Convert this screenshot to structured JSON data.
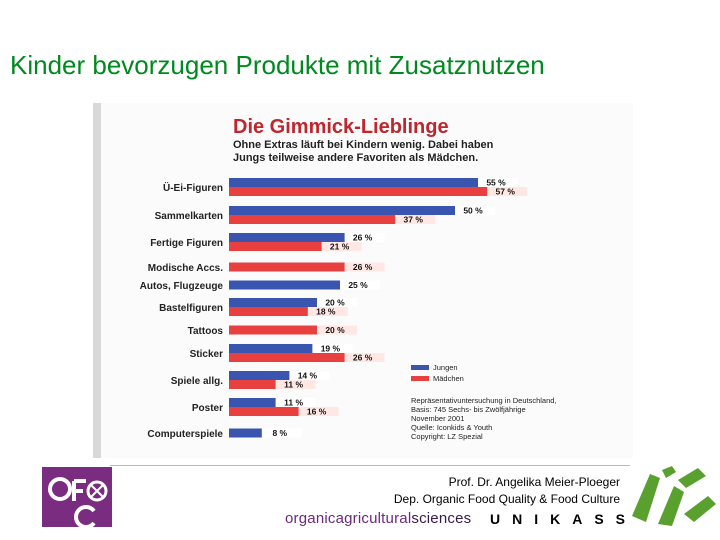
{
  "slide": {
    "title": "Kinder bevorzugen Produkte mit Zusatznutzen"
  },
  "footer": {
    "author": "Prof. Dr. Angelika Meier-Ploeger",
    "department": "Dep. Organic Food Quality & Food Culture",
    "brand_a": "organicagricultural",
    "brand_b": "sciences",
    "uni": "UNIKASSEL"
  },
  "colors": {
    "title": "#00891f",
    "heading": "#c0262e",
    "jungen": "#3a55b0",
    "maedchen": "#e8403e",
    "brand": "#6a2a7a",
    "logo_left_bg": "#7a2c80",
    "logo_right": "#5aa02e"
  },
  "chart_data": {
    "type": "bar",
    "orientation": "horizontal",
    "title": "Die Gimmick-Lieblinge",
    "subtitle": [
      "Ohne Extras läuft bei Kindern wenig. Dabei haben",
      "Jungs teilweise andere Favoriten als Mädchen."
    ],
    "categories": [
      "Ü-Ei-Figuren",
      "Sammelkarten",
      "Fertige Figuren",
      "Modische Accs.",
      "Autos, Flugzeuge",
      "Bastelfiguren",
      "Tattoos",
      "Sticker",
      "Spiele allg.",
      "Poster",
      "Computerspiele"
    ],
    "series": [
      {
        "name": "Jungen",
        "values": [
          55,
          50,
          26,
          null,
          25,
          20,
          null,
          19,
          14,
          11,
          8
        ]
      },
      {
        "name": "Mädchen",
        "values": [
          57,
          37,
          21,
          26,
          null,
          18,
          20,
          26,
          11,
          16,
          null
        ]
      }
    ],
    "unit": "%",
    "legend_position": "bottom-right",
    "notes": [
      "Repräsentativuntersuchung in Deutschland,",
      "Basis: 745 Sechs- bis Zwölfjährige",
      "November 2001",
      "Quelle: Iconkids & Youth",
      "Copyright: LZ Spezial"
    ]
  }
}
